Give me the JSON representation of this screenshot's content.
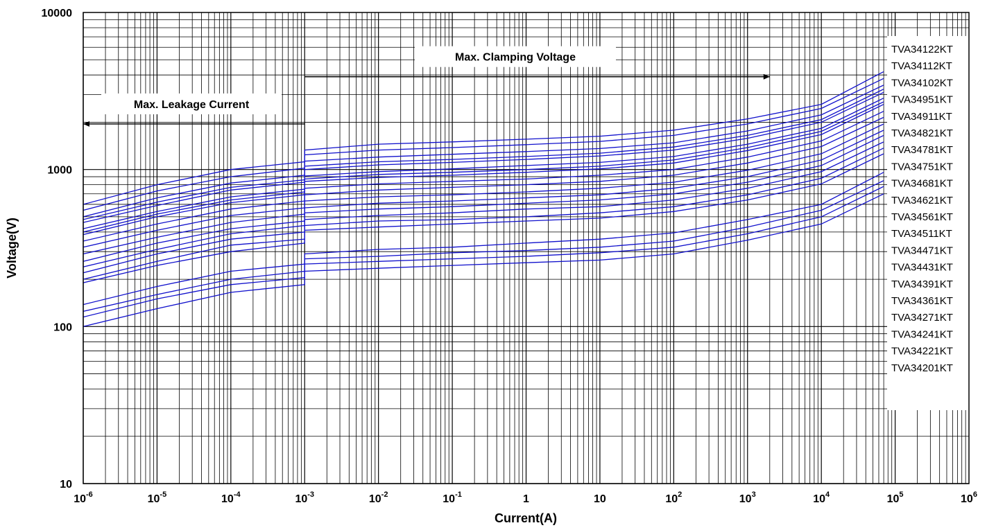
{
  "chart_data": {
    "type": "line",
    "xlabel": "Current(A)",
    "ylabel": "Voltage(V)",
    "x_scale": "log",
    "y_scale": "log",
    "xlim": [
      1e-06,
      1000000.0
    ],
    "ylim": [
      10,
      10000
    ],
    "grid": true,
    "x_ticks": [
      {
        "base": "10",
        "exp": "-6",
        "value": 1e-06
      },
      {
        "base": "10",
        "exp": "-5",
        "value": 1e-05
      },
      {
        "base": "10",
        "exp": "-4",
        "value": 0.0001
      },
      {
        "base": "10",
        "exp": "-3",
        "value": 0.001
      },
      {
        "base": "10",
        "exp": "-2",
        "value": 0.01
      },
      {
        "base": "10",
        "exp": "-1",
        "value": 0.1
      },
      {
        "base": "1",
        "exp": "",
        "value": 1
      },
      {
        "base": "10",
        "exp": "",
        "value": 10
      },
      {
        "base": "10",
        "exp": "2",
        "value": 100
      },
      {
        "base": "10",
        "exp": "3",
        "value": 1000
      },
      {
        "base": "10",
        "exp": "4",
        "value": 10000
      },
      {
        "base": "10",
        "exp": "5",
        "value": 100000
      },
      {
        "base": "10",
        "exp": "6",
        "value": 1000000
      }
    ],
    "y_ticks": [
      {
        "label": "10",
        "value": 10
      },
      {
        "label": "100",
        "value": 100
      },
      {
        "label": "1000",
        "value": 1000
      },
      {
        "label": "10000",
        "value": 10000
      }
    ],
    "annotations": [
      {
        "text": "Max. Leakage Current",
        "direction": "left",
        "x_from": 0.001,
        "x_to": 1e-06,
        "y": 1950
      },
      {
        "text": "Max. Clamping Voltage",
        "direction": "right",
        "x_from": 0.001,
        "x_to": 2000,
        "y": 3900
      }
    ],
    "x": [
      1e-06,
      1e-05,
      0.0001,
      0.001,
      0.001,
      0.01,
      0.1,
      1,
      10,
      100,
      1000,
      10000,
      70000
    ],
    "series": [
      {
        "name": "TVA34122KT",
        "values": [
          600,
          800,
          1000,
          1120,
          1330,
          1450,
          1500,
          1560,
          1630,
          1780,
          2100,
          2600,
          4200
        ]
      },
      {
        "name": "TVA34112KT",
        "values": [
          550,
          730,
          900,
          1020,
          1240,
          1330,
          1380,
          1440,
          1510,
          1650,
          1950,
          2450,
          3800
        ]
      },
      {
        "name": "TVA34102KT",
        "values": [
          500,
          660,
          820,
          920,
          1130,
          1200,
          1250,
          1300,
          1360,
          1480,
          1760,
          2230,
          3450
        ]
      },
      {
        "name": "TVA34951KT",
        "values": [
          480,
          620,
          770,
          860,
          1050,
          1120,
          1160,
          1210,
          1270,
          1390,
          1650,
          2080,
          3250
        ]
      },
      {
        "name": "TVA34911KT",
        "values": [
          460,
          590,
          740,
          830,
          1000,
          1070,
          1110,
          1160,
          1220,
          1330,
          1580,
          2000,
          3100
        ]
      },
      {
        "name": "TVA34821KT",
        "values": [
          420,
          540,
          670,
          750,
          910,
          970,
          1010,
          1060,
          1110,
          1210,
          1450,
          1830,
          2850
        ]
      },
      {
        "name": "TVA34781KT",
        "values": [
          400,
          520,
          640,
          720,
          870,
          930,
          960,
          1000,
          1050,
          1150,
          1380,
          1750,
          2700
        ]
      },
      {
        "name": "TVA34751KT",
        "values": [
          385,
          500,
          615,
          690,
          840,
          890,
          920,
          960,
          1010,
          1100,
          1320,
          1670,
          2600
        ]
      },
      {
        "name": "TVA34681KT",
        "values": [
          350,
          450,
          560,
          630,
          760,
          810,
          840,
          870,
          920,
          1000,
          1200,
          1520,
          2350
        ]
      },
      {
        "name": "TVA34621KT",
        "values": [
          320,
          410,
          510,
          570,
          690,
          740,
          770,
          800,
          840,
          920,
          1100,
          1400,
          2150
        ]
      },
      {
        "name": "TVA34561KT",
        "values": [
          290,
          370,
          460,
          520,
          630,
          670,
          690,
          720,
          760,
          830,
          990,
          1260,
          1950
        ]
      },
      {
        "name": "TVA34511KT",
        "values": [
          260,
          340,
          420,
          470,
          570,
          610,
          630,
          660,
          690,
          760,
          900,
          1150,
          1780
        ]
      },
      {
        "name": "TVA34471KT",
        "values": [
          240,
          310,
          390,
          440,
          530,
          560,
          580,
          610,
          640,
          700,
          830,
          1060,
          1650
        ]
      },
      {
        "name": "TVA34431KT",
        "values": [
          220,
          290,
          360,
          400,
          480,
          510,
          530,
          560,
          580,
          640,
          760,
          970,
          1500
        ]
      },
      {
        "name": "TVA34391KT",
        "values": [
          200,
          260,
          330,
          360,
          440,
          470,
          480,
          500,
          530,
          580,
          690,
          880,
          1370
        ]
      },
      {
        "name": "TVA34361KT",
        "values": [
          190,
          245,
          300,
          340,
          410,
          430,
          450,
          470,
          490,
          540,
          640,
          810,
          1260
        ]
      },
      {
        "name": "TVA34271KT",
        "values": [
          138,
          180,
          225,
          250,
          290,
          310,
          320,
          340,
          360,
          395,
          480,
          600,
          960
        ]
      },
      {
        "name": "TVA34241KT",
        "values": [
          125,
          160,
          200,
          225,
          270,
          280,
          295,
          305,
          320,
          350,
          430,
          550,
          850
        ]
      },
      {
        "name": "TVA34221KT",
        "values": [
          115,
          150,
          185,
          205,
          250,
          260,
          270,
          280,
          295,
          320,
          390,
          500,
          780
        ]
      },
      {
        "name": "TVA34201KT",
        "values": [
          100,
          130,
          165,
          185,
          225,
          235,
          245,
          255,
          265,
          290,
          355,
          450,
          700
        ]
      }
    ],
    "line_color": "#1010cc"
  }
}
